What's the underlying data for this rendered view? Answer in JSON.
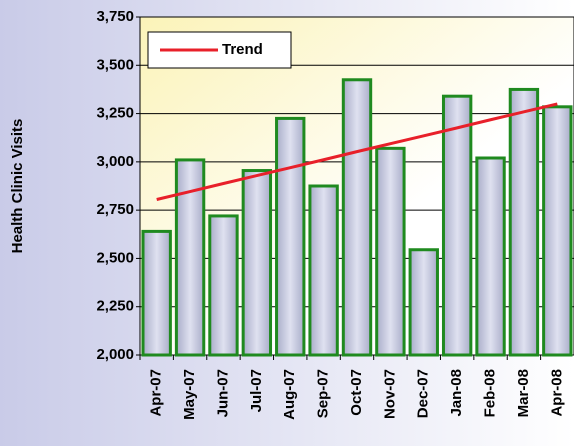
{
  "chart_data": {
    "type": "bar",
    "y_label": "Health Clinic Visits",
    "categories": [
      "Apr-07",
      "May-07",
      "Jun-07",
      "Jul-07",
      "Aug-07",
      "Sep-07",
      "Oct-07",
      "Nov-07",
      "Dec-07",
      "Jan-08",
      "Feb-08",
      "Mar-08",
      "Apr-08"
    ],
    "values": [
      2640,
      3010,
      2720,
      2955,
      3225,
      2875,
      3425,
      3070,
      2545,
      3340,
      3020,
      3375,
      3285
    ],
    "color": "#c3c6de",
    "edge_color": "#1f8a1f",
    "series": [
      {
        "name": "Trend",
        "color": "#e8202a",
        "values": [
          2805,
          2846,
          2888,
          2929,
          2970,
          3011,
          3053,
          3094,
          3135,
          3176,
          3218,
          3259,
          3300
        ]
      }
    ],
    "ylim": [
      2000,
      3750
    ],
    "yticks": [
      {
        "value": 2000,
        "label": "2,000"
      },
      {
        "value": 2250,
        "label": "2,250"
      },
      {
        "value": 2500,
        "label": "2,500"
      },
      {
        "value": 2750,
        "label": "2,750"
      },
      {
        "value": 3000,
        "label": "3,000"
      },
      {
        "value": 3250,
        "label": "3,250"
      },
      {
        "value": 3500,
        "label": "3,500"
      },
      {
        "value": 3750,
        "label": "3,750"
      }
    ],
    "grid": true,
    "legend": "upper left"
  }
}
